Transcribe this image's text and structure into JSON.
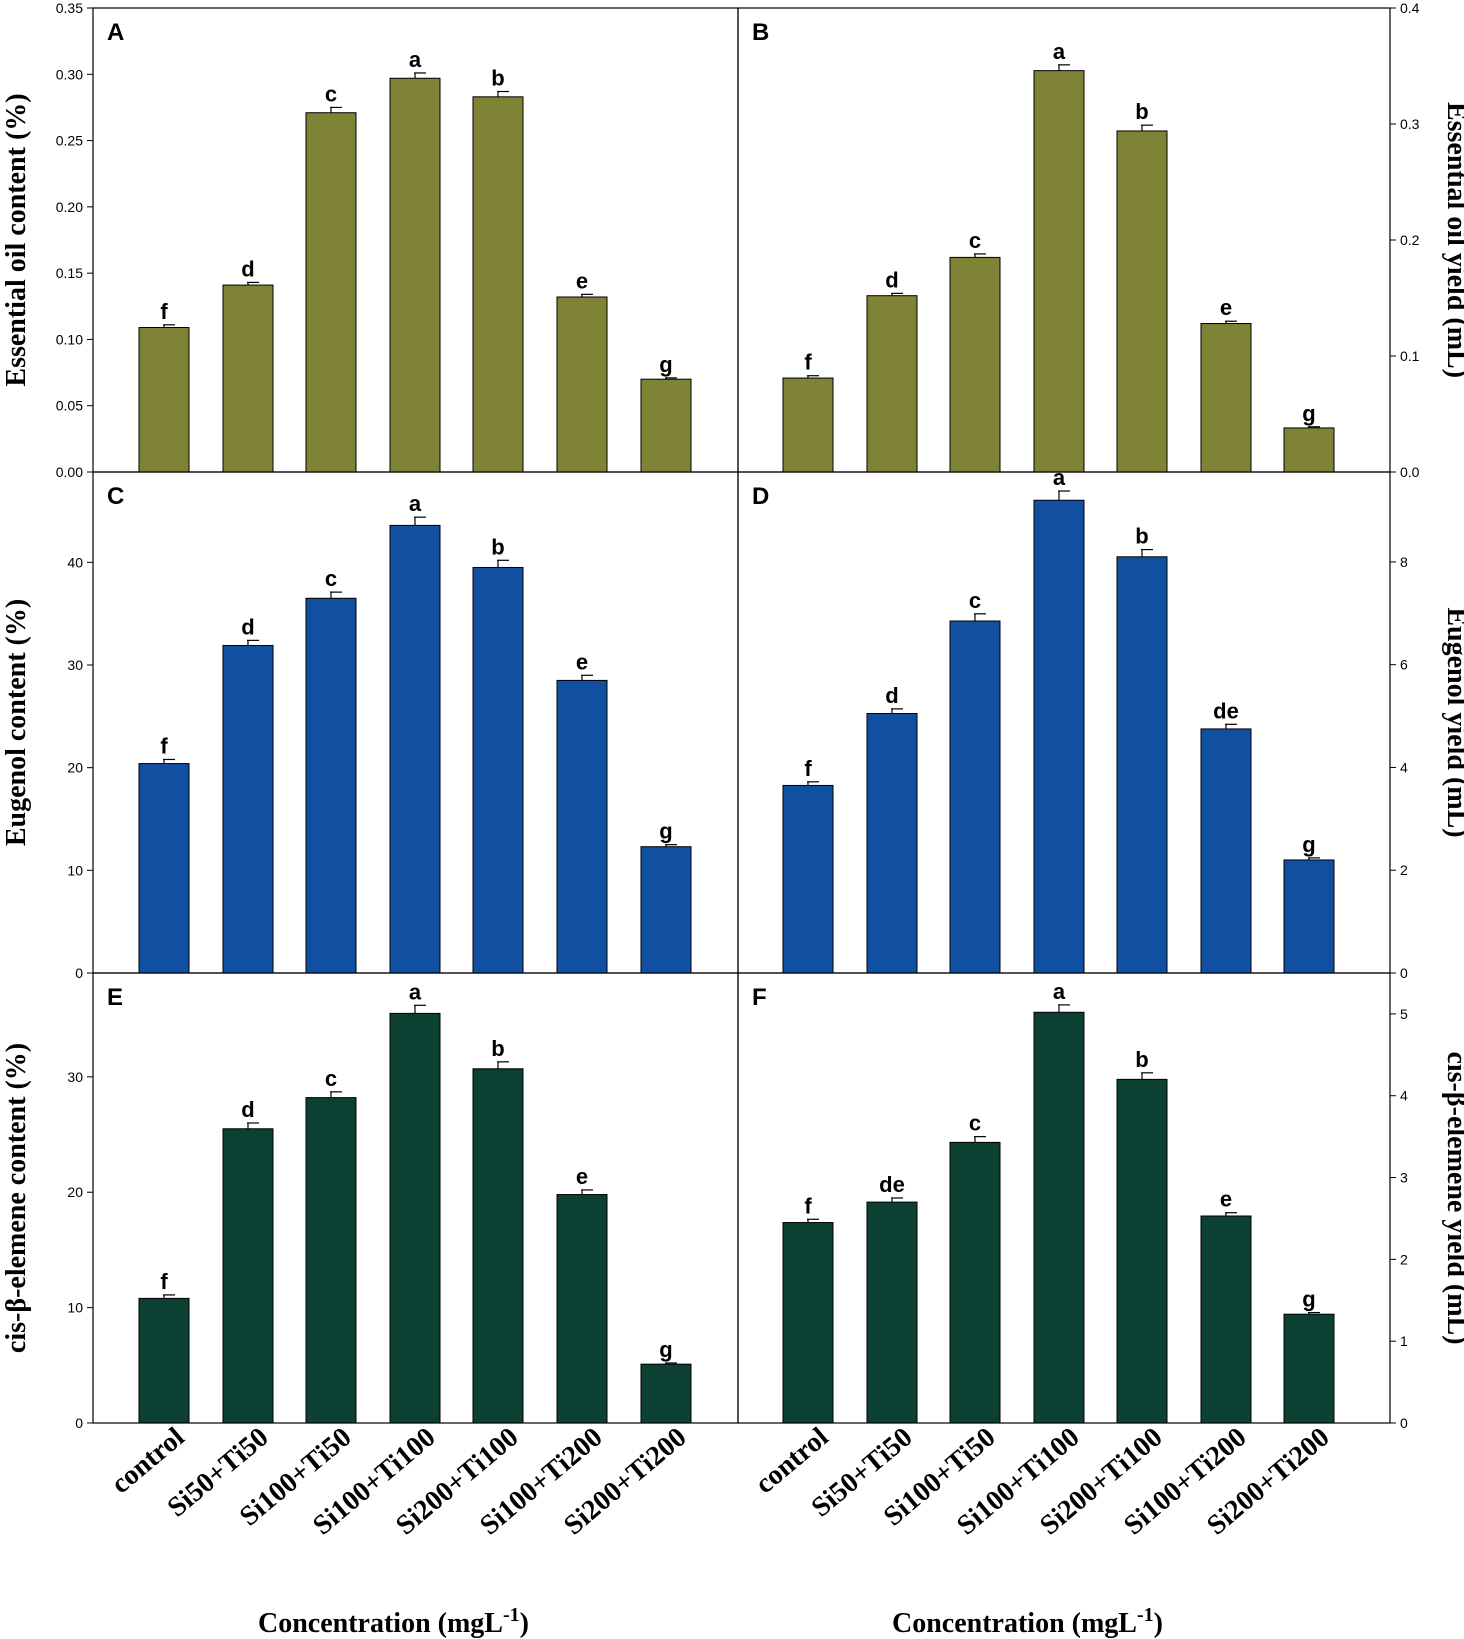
{
  "colors": {
    "olive": "#7f8335",
    "blue": "#1150a1",
    "darkgreen": "#0b4032"
  },
  "x_title": {
    "main": "Concentration (mgL",
    "sup": "-1",
    "close": ")"
  },
  "chart_data": [
    {
      "panel": "A",
      "type": "bar",
      "categories": [
        "control",
        "Si50+Ti50",
        "Si100+Ti50",
        "Si100+Ti100",
        "Si200+Ti100",
        "Si100+Ti200",
        "Si200+Ti200"
      ],
      "values": [
        0.109,
        0.141,
        0.271,
        0.297,
        0.283,
        0.132,
        0.07
      ],
      "errors": [
        0.002,
        0.002,
        0.004,
        0.004,
        0.004,
        0.002,
        0.001
      ],
      "letters": [
        "f",
        "d",
        "c",
        "a",
        "b",
        "e",
        "g"
      ],
      "ylabel": "Essential oil content (%)",
      "ylim": [
        0,
        0.35
      ],
      "ticks": [
        "0.00",
        "0.05",
        "0.10",
        "0.15",
        "0.20",
        "0.25",
        "0.30",
        "0.35"
      ],
      "color": "olive"
    },
    {
      "panel": "B",
      "type": "bar",
      "categories": [
        "control",
        "Si50+Ti50",
        "Si100+Ti50",
        "Si100+Ti100",
        "Si200+Ti100",
        "Si100+Ti200",
        "Si200+Ti200"
      ],
      "values": [
        0.081,
        0.152,
        0.185,
        0.346,
        0.294,
        0.128,
        0.038
      ],
      "errors": [
        0.002,
        0.002,
        0.003,
        0.005,
        0.005,
        0.002,
        0.001
      ],
      "letters": [
        "f",
        "d",
        "c",
        "a",
        "b",
        "e",
        "g"
      ],
      "ylabel": "Essential oil yield (mL)",
      "ylim": [
        0,
        0.4
      ],
      "ticks": [
        "0.0",
        "0.1",
        "0.2",
        "0.3",
        "0.4"
      ],
      "color": "olive"
    },
    {
      "panel": "C",
      "type": "bar",
      "categories": [
        "control",
        "Si50+Ti50",
        "Si100+Ti50",
        "Si100+Ti100",
        "Si200+Ti100",
        "Si100+Ti200",
        "Si200+Ti200"
      ],
      "values": [
        20.4,
        31.9,
        36.5,
        43.6,
        39.5,
        28.5,
        12.3
      ],
      "errors": [
        0.4,
        0.5,
        0.6,
        0.8,
        0.7,
        0.5,
        0.2
      ],
      "letters": [
        "f",
        "d",
        "c",
        "a",
        "b",
        "e",
        "g"
      ],
      "ylabel": "Eugenol content (%)",
      "ylim": [
        0,
        48.8
      ],
      "ticks": [
        "0",
        "10",
        "20",
        "30",
        "40"
      ],
      "color": "blue"
    },
    {
      "panel": "D",
      "type": "bar",
      "categories": [
        "control",
        "Si50+Ti50",
        "Si100+Ti50",
        "Si100+Ti100",
        "Si200+Ti100",
        "Si100+Ti200",
        "Si200+Ti200"
      ],
      "values": [
        3.65,
        5.05,
        6.85,
        9.2,
        8.1,
        4.75,
        2.2
      ],
      "errors": [
        0.07,
        0.09,
        0.14,
        0.18,
        0.14,
        0.09,
        0.04
      ],
      "letters": [
        "f",
        "d",
        "c",
        "a",
        "b",
        "de",
        "g"
      ],
      "ylabel": "Eugenol yield (mL)",
      "ylim": [
        0,
        9.75
      ],
      "ticks": [
        "0",
        "2",
        "4",
        "6",
        "8"
      ],
      "color": "blue"
    },
    {
      "panel": "E",
      "type": "bar",
      "categories": [
        "control",
        "Si50+Ti50",
        "Si100+Ti50",
        "Si100+Ti100",
        "Si200+Ti100",
        "Si100+Ti200",
        "Si200+Ti200"
      ],
      "values": [
        10.8,
        25.5,
        28.2,
        35.5,
        30.7,
        19.8,
        5.1
      ],
      "errors": [
        0.3,
        0.5,
        0.5,
        0.7,
        0.6,
        0.4,
        0.1
      ],
      "letters": [
        "f",
        "d",
        "c",
        "a",
        "b",
        "e",
        "g"
      ],
      "ylabel": "cis-β-elemene content (%)",
      "ylim": [
        0,
        39
      ],
      "ticks": [
        "0",
        "10",
        "20",
        "30"
      ],
      "color": "darkgreen"
    },
    {
      "panel": "F",
      "type": "bar",
      "categories": [
        "control",
        "Si50+Ti50",
        "Si100+Ti50",
        "Si100+Ti100",
        "Si200+Ti100",
        "Si100+Ti200",
        "Si200+Ti200"
      ],
      "values": [
        2.45,
        2.7,
        3.43,
        5.02,
        4.2,
        2.53,
        1.33
      ],
      "errors": [
        0.04,
        0.05,
        0.07,
        0.09,
        0.08,
        0.04,
        0.02
      ],
      "letters": [
        "f",
        "de",
        "c",
        "a",
        "b",
        "e",
        "g"
      ],
      "ylabel": "cis-β-elemene yield (mL)",
      "ylim": [
        0,
        5.5
      ],
      "ticks": [
        "0",
        "1",
        "2",
        "3",
        "4",
        "5"
      ],
      "color": "darkgreen"
    }
  ]
}
